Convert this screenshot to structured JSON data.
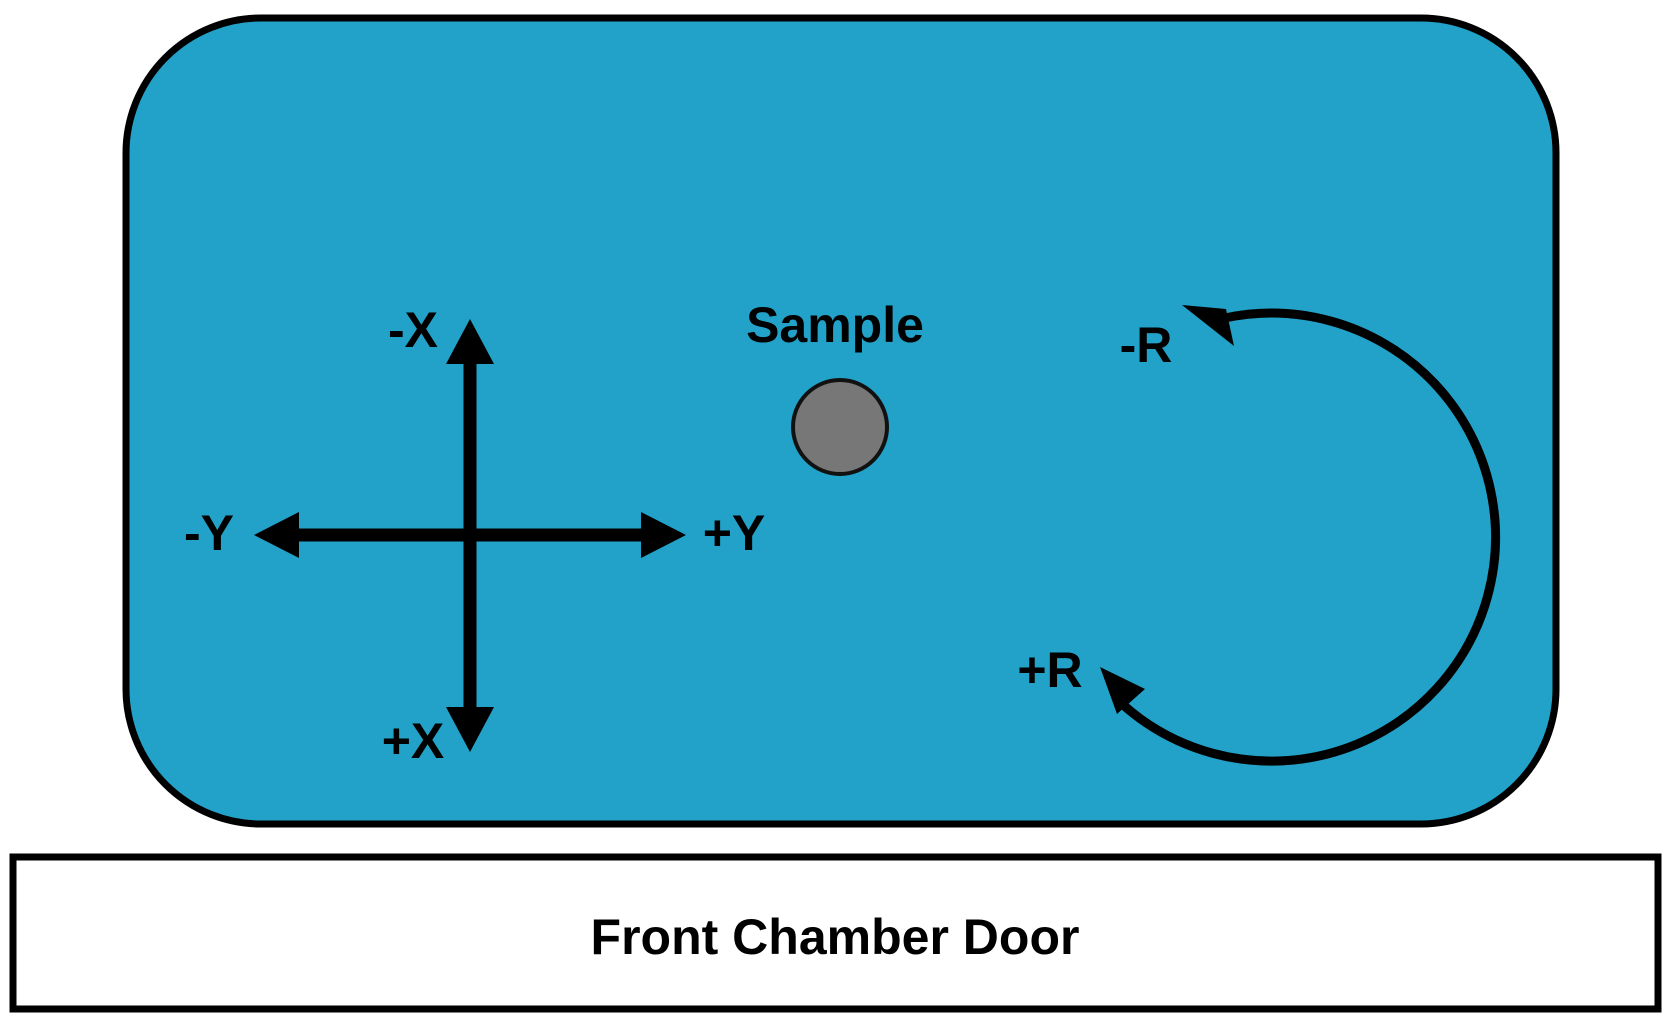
{
  "colors": {
    "chamber_fill": "#22A2C9",
    "outline": "#000000",
    "sample_fill": "#777777",
    "door_fill": "#ffffff"
  },
  "labels": {
    "sample": "Sample",
    "minus_x": "-X",
    "plus_x": "+X",
    "minus_y": "-Y",
    "plus_y": "+Y",
    "minus_r": "-R",
    "plus_r": "+R",
    "door": "Front Chamber Door"
  }
}
